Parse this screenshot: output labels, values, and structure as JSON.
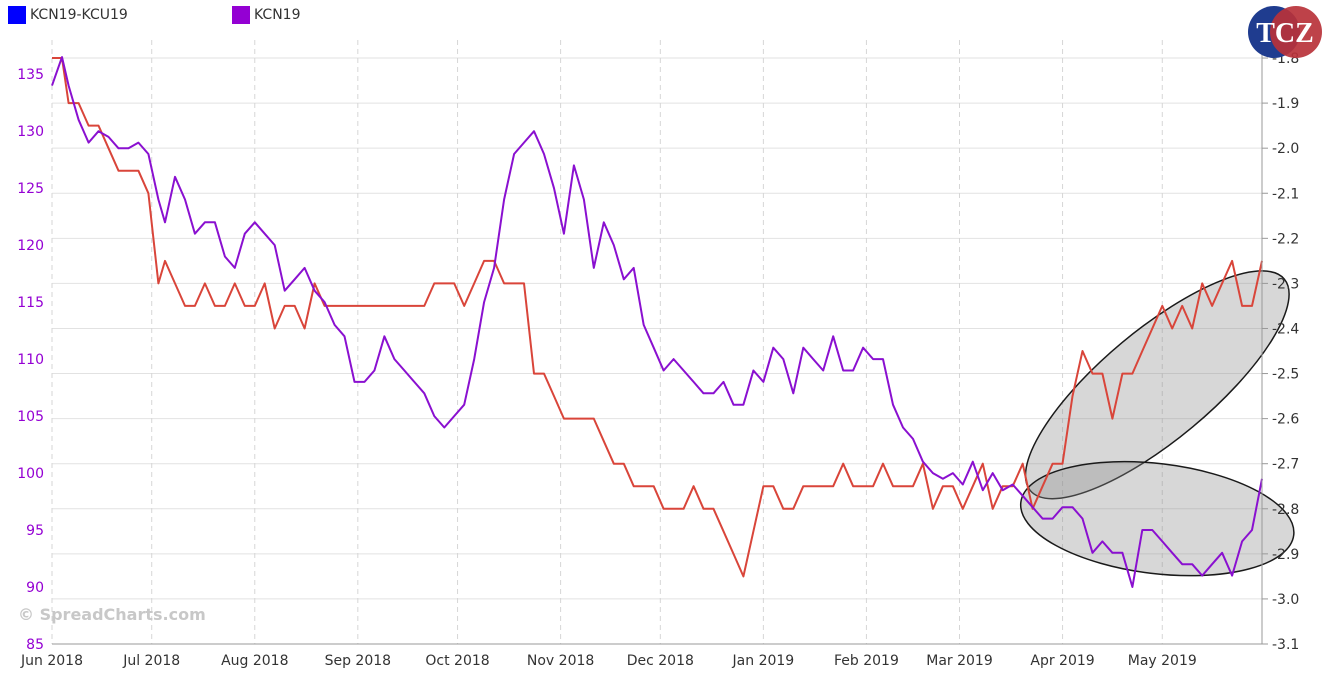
{
  "legend": [
    {
      "label": "KCN19-KCU19",
      "color": "#0000ff"
    },
    {
      "label": "KCN19",
      "color": "#9400d3"
    }
  ],
  "logo": {
    "text": "TCZ"
  },
  "watermark": "© SpreadCharts.com",
  "colors": {
    "left_axis": "#9400d3",
    "right_axis": "#333333",
    "spread_line": "#d9453a",
    "price_line": "#8a10d0"
  },
  "chart_data": {
    "type": "line",
    "x_ticks": [
      "Jun 2018",
      "Jul 2018",
      "Aug 2018",
      "Sep 2018",
      "Oct 2018",
      "Nov 2018",
      "Dec 2018",
      "Jan 2019",
      "Feb 2019",
      "Mar 2019",
      "Apr 2019",
      "May 2019"
    ],
    "y_left": {
      "ticks": [
        85,
        90,
        95,
        100,
        105,
        110,
        115,
        120,
        125,
        130,
        135
      ],
      "range": [
        85,
        138
      ]
    },
    "y_right": {
      "ticks": [
        -3.1,
        -3.0,
        -2.9,
        -2.8,
        -2.7,
        -2.6,
        -2.5,
        -2.4,
        -2.3,
        -2.2,
        -2.1,
        -2.0,
        -1.9,
        -1.8
      ],
      "range": [
        -3.1,
        -1.76
      ]
    },
    "series": [
      {
        "name": "KCN19",
        "axis": "left",
        "x": [
          "2018-06-01",
          "2018-06-04",
          "2018-06-06",
          "2018-06-09",
          "2018-06-12",
          "2018-06-15",
          "2018-06-18",
          "2018-06-21",
          "2018-06-24",
          "2018-06-27",
          "2018-06-30",
          "2018-07-03",
          "2018-07-05",
          "2018-07-08",
          "2018-07-11",
          "2018-07-14",
          "2018-07-17",
          "2018-07-20",
          "2018-07-23",
          "2018-07-26",
          "2018-07-29",
          "2018-08-01",
          "2018-08-04",
          "2018-08-07",
          "2018-08-10",
          "2018-08-13",
          "2018-08-16",
          "2018-08-19",
          "2018-08-22",
          "2018-08-25",
          "2018-08-28",
          "2018-08-31",
          "2018-09-03",
          "2018-09-06",
          "2018-09-09",
          "2018-09-12",
          "2018-09-15",
          "2018-09-18",
          "2018-09-21",
          "2018-09-24",
          "2018-09-27",
          "2018-09-30",
          "2018-10-03",
          "2018-10-06",
          "2018-10-09",
          "2018-10-12",
          "2018-10-15",
          "2018-10-18",
          "2018-10-21",
          "2018-10-24",
          "2018-10-27",
          "2018-10-30",
          "2018-11-02",
          "2018-11-05",
          "2018-11-08",
          "2018-11-11",
          "2018-11-14",
          "2018-11-17",
          "2018-11-20",
          "2018-11-23",
          "2018-11-26",
          "2018-11-29",
          "2018-12-02",
          "2018-12-05",
          "2018-12-08",
          "2018-12-11",
          "2018-12-14",
          "2018-12-17",
          "2018-12-20",
          "2018-12-23",
          "2018-12-26",
          "2018-12-29",
          "2019-01-01",
          "2019-01-04",
          "2019-01-07",
          "2019-01-10",
          "2019-01-13",
          "2019-01-16",
          "2019-01-19",
          "2019-01-22",
          "2019-01-25",
          "2019-01-28",
          "2019-01-31",
          "2019-02-03",
          "2019-02-06",
          "2019-02-09",
          "2019-02-12",
          "2019-02-15",
          "2019-02-18",
          "2019-02-21",
          "2019-02-24",
          "2019-02-27",
          "2019-03-02",
          "2019-03-05",
          "2019-03-08",
          "2019-03-11",
          "2019-03-14",
          "2019-03-17",
          "2019-03-20",
          "2019-03-23",
          "2019-03-26",
          "2019-03-29",
          "2019-04-01",
          "2019-04-04",
          "2019-04-07",
          "2019-04-10",
          "2019-04-13",
          "2019-04-16",
          "2019-04-19",
          "2019-04-22",
          "2019-04-25",
          "2019-04-28",
          "2019-05-01",
          "2019-05-04",
          "2019-05-07",
          "2019-05-10",
          "2019-05-13",
          "2019-05-16",
          "2019-05-19",
          "2019-05-22",
          "2019-05-25",
          "2019-05-28",
          "2019-05-31"
        ],
        "y": [
          134,
          136.5,
          134,
          131,
          129,
          130,
          129.5,
          128.5,
          128.5,
          129,
          128,
          124,
          122,
          126,
          124,
          121,
          122,
          122,
          119,
          118,
          121,
          122,
          121,
          120,
          116,
          117,
          118,
          116,
          115,
          113,
          112,
          108,
          108,
          109,
          112,
          110,
          109,
          108,
          107,
          105,
          104,
          105,
          106,
          110,
          115,
          118,
          124,
          128,
          129,
          130,
          128,
          125,
          121,
          127,
          124,
          118,
          122,
          120,
          117,
          118,
          113,
          111,
          109,
          110,
          109,
          108,
          107,
          107,
          108,
          106,
          106,
          109,
          108,
          111,
          110,
          107,
          111,
          110,
          109,
          112,
          109,
          109,
          111,
          110,
          110,
          106,
          104,
          103,
          101,
          100,
          99.5,
          100,
          99,
          101,
          98.5,
          100,
          98.5,
          99,
          98,
          97,
          96,
          96,
          97,
          97,
          96,
          93,
          94,
          93,
          93,
          90,
          95,
          95,
          94,
          93,
          92,
          92,
          91,
          92,
          93,
          91,
          94,
          95,
          99.5
        ]
      },
      {
        "name": "KCN19-KCU19",
        "axis": "right",
        "x": [
          "2018-06-01",
          "2018-06-04",
          "2018-06-06",
          "2018-06-09",
          "2018-06-12",
          "2018-06-15",
          "2018-06-18",
          "2018-06-21",
          "2018-06-24",
          "2018-06-27",
          "2018-06-30",
          "2018-07-03",
          "2018-07-05",
          "2018-07-08",
          "2018-07-11",
          "2018-07-14",
          "2018-07-17",
          "2018-07-20",
          "2018-07-23",
          "2018-07-26",
          "2018-07-29",
          "2018-08-01",
          "2018-08-04",
          "2018-08-07",
          "2018-08-10",
          "2018-08-13",
          "2018-08-16",
          "2018-08-19",
          "2018-08-22",
          "2018-08-25",
          "2018-08-28",
          "2018-08-31",
          "2018-09-03",
          "2018-09-06",
          "2018-09-09",
          "2018-09-12",
          "2018-09-15",
          "2018-09-18",
          "2018-09-21",
          "2018-09-24",
          "2018-09-27",
          "2018-09-30",
          "2018-10-03",
          "2018-10-06",
          "2018-10-09",
          "2018-10-12",
          "2018-10-15",
          "2018-10-18",
          "2018-10-21",
          "2018-10-24",
          "2018-10-27",
          "2018-10-30",
          "2018-11-02",
          "2018-11-05",
          "2018-11-08",
          "2018-11-11",
          "2018-11-14",
          "2018-11-17",
          "2018-11-20",
          "2018-11-23",
          "2018-11-26",
          "2018-11-29",
          "2018-12-02",
          "2018-12-05",
          "2018-12-08",
          "2018-12-11",
          "2018-12-14",
          "2018-12-17",
          "2018-12-20",
          "2018-12-23",
          "2018-12-26",
          "2018-12-29",
          "2019-01-01",
          "2019-01-04",
          "2019-01-07",
          "2019-01-10",
          "2019-01-13",
          "2019-01-16",
          "2019-01-19",
          "2019-01-22",
          "2019-01-25",
          "2019-01-28",
          "2019-01-31",
          "2019-02-03",
          "2019-02-06",
          "2019-02-09",
          "2019-02-12",
          "2019-02-15",
          "2019-02-18",
          "2019-02-21",
          "2019-02-24",
          "2019-02-27",
          "2019-03-02",
          "2019-03-05",
          "2019-03-08",
          "2019-03-11",
          "2019-03-14",
          "2019-03-17",
          "2019-03-20",
          "2019-03-23",
          "2019-03-26",
          "2019-03-29",
          "2019-04-01",
          "2019-04-04",
          "2019-04-07",
          "2019-04-10",
          "2019-04-13",
          "2019-04-16",
          "2019-04-19",
          "2019-04-22",
          "2019-04-25",
          "2019-04-28",
          "2019-05-01",
          "2019-05-04",
          "2019-05-07",
          "2019-05-10",
          "2019-05-13",
          "2019-05-16",
          "2019-05-19",
          "2019-05-22",
          "2019-05-25",
          "2019-05-28",
          "2019-05-31"
        ],
        "y": [
          -1.8,
          -1.8,
          -1.9,
          -1.9,
          -1.95,
          -1.95,
          -2.0,
          -2.05,
          -2.05,
          -2.05,
          -2.1,
          -2.3,
          -2.25,
          -2.3,
          -2.35,
          -2.35,
          -2.3,
          -2.35,
          -2.35,
          -2.3,
          -2.35,
          -2.35,
          -2.3,
          -2.4,
          -2.35,
          -2.35,
          -2.4,
          -2.3,
          -2.35,
          -2.35,
          -2.35,
          -2.35,
          -2.35,
          -2.35,
          -2.35,
          -2.35,
          -2.35,
          -2.35,
          -2.35,
          -2.3,
          -2.3,
          -2.3,
          -2.35,
          -2.3,
          -2.25,
          -2.25,
          -2.3,
          -2.3,
          -2.3,
          -2.5,
          -2.5,
          -2.55,
          -2.6,
          -2.6,
          -2.6,
          -2.6,
          -2.65,
          -2.7,
          -2.7,
          -2.75,
          -2.75,
          -2.75,
          -2.8,
          -2.8,
          -2.8,
          -2.75,
          -2.8,
          -2.8,
          -2.85,
          -2.9,
          -2.95,
          -2.85,
          -2.75,
          -2.75,
          -2.8,
          -2.8,
          -2.75,
          -2.75,
          -2.75,
          -2.75,
          -2.7,
          -2.75,
          -2.75,
          -2.75,
          -2.7,
          -2.75,
          -2.75,
          -2.75,
          -2.7,
          -2.8,
          -2.75,
          -2.75,
          -2.8,
          -2.75,
          -2.7,
          -2.8,
          -2.75,
          -2.75,
          -2.7,
          -2.8,
          -2.75,
          -2.7,
          -2.7,
          -2.55,
          -2.45,
          -2.5,
          -2.5,
          -2.6,
          -2.5,
          -2.5,
          -2.45,
          -2.4,
          -2.35,
          -2.4,
          -2.35,
          -2.4,
          -2.3,
          -2.35,
          -2.3,
          -2.25,
          -2.35,
          -2.35,
          -2.25
        ]
      }
    ],
    "annotations": [
      {
        "shape": "ellipse",
        "series": "KCN19-KCU19",
        "from": "2019-04-01",
        "to": "2019-05-28"
      },
      {
        "shape": "ellipse",
        "series": "KCN19",
        "from": "2019-04-01",
        "to": "2019-05-28"
      }
    ],
    "grid": true,
    "legend_position": "top-left"
  }
}
